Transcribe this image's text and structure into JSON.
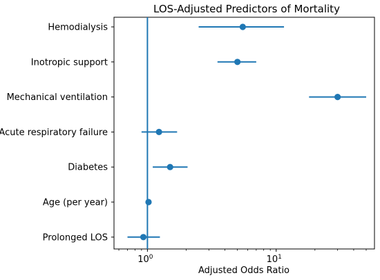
{
  "chart_data": {
    "type": "forest",
    "title": "LOS-Adjusted Predictors of Mortality",
    "xlabel": "Adjusted Odds Ratio",
    "ylabel": "",
    "x_scale": "log",
    "xlim": [
      0.55,
      58
    ],
    "x_ticks": [
      {
        "value": 1,
        "base": "10",
        "exponent": "0"
      },
      {
        "value": 10,
        "base": "10",
        "exponent": "1"
      }
    ],
    "reference_line": 1,
    "grid": false,
    "color": "#1f77b4",
    "categories": [
      "Hemodialysis",
      "Inotropic support",
      "Mechanical ventilation",
      "Acute respiratory failure",
      "Diabetes",
      "Age (per year)",
      "Prolonged LOS"
    ],
    "series": [
      {
        "odds_ratio": [
          5.5,
          5.0,
          30.0,
          1.23,
          1.5,
          1.02,
          0.93
        ],
        "ci_low": [
          2.5,
          3.5,
          18.0,
          0.9,
          1.1,
          1.0,
          0.7
        ],
        "ci_high": [
          11.5,
          7.0,
          50.0,
          1.7,
          2.05,
          1.05,
          1.25
        ]
      }
    ]
  }
}
